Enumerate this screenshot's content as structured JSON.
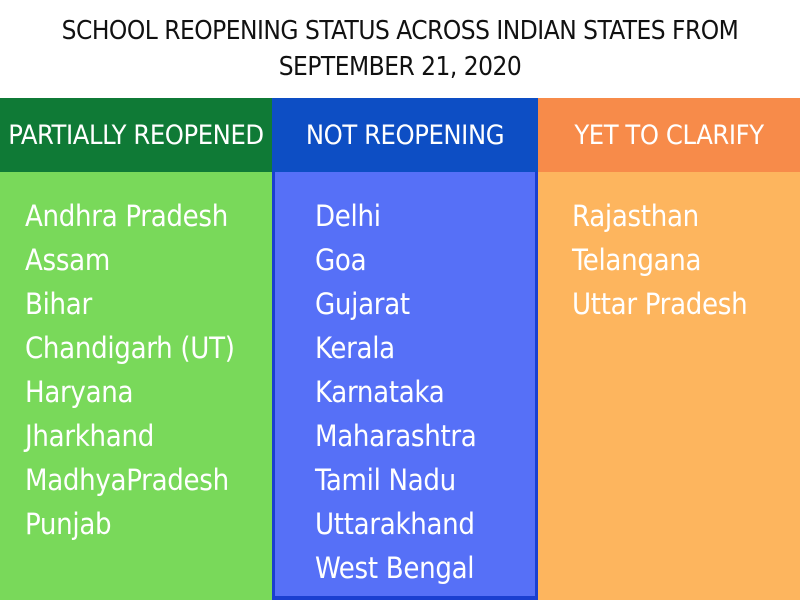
{
  "title": {
    "line1": "SCHOOL REOPENING STATUS ACROSS INDIAN STATES FROM",
    "line2": "SEPTEMBER 21, 2020"
  },
  "columns": [
    {
      "header": "PARTIALLY REOPENED",
      "color": "#0f7a36",
      "body_color": "#79d95a",
      "items": [
        "Andhra Pradesh",
        "Assam",
        "Bihar",
        "Chandigarh (UT)",
        "Haryana",
        "Jharkhand",
        "MadhyaPradesh",
        "Punjab"
      ]
    },
    {
      "header": "NOT REOPENING",
      "color": "#0d4ec4",
      "body_color": "#5670f7",
      "items": [
        "Delhi",
        "Goa",
        "Gujarat",
        "Kerala",
        "Karnataka",
        "Maharashtra",
        "Tamil Nadu",
        "Uttarakhand",
        "West Bengal"
      ]
    },
    {
      "header": "YET TO CLARIFY",
      "color": "#f78b4a",
      "body_color": "#fdb55e",
      "items": [
        "Rajasthan",
        "Telangana",
        "Uttar Pradesh"
      ]
    }
  ]
}
